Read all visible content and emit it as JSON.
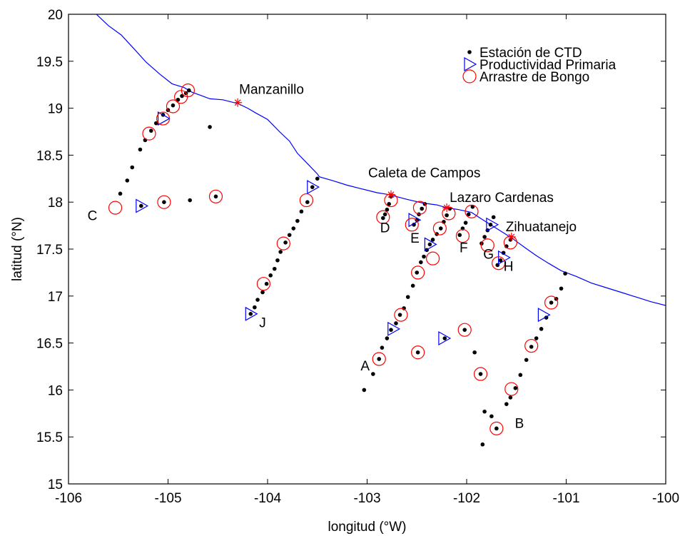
{
  "chart_data": {
    "type": "scatter",
    "title": "",
    "xlabel": "longitud (°W)",
    "ylabel": "latitud (°N)",
    "xlim": [
      -106,
      -100
    ],
    "ylim": [
      15,
      20
    ],
    "xticks": [
      -106,
      -105,
      -104,
      -103,
      -102,
      -101,
      -100
    ],
    "yticks": [
      15,
      15.5,
      16,
      16.5,
      17,
      17.5,
      18,
      18.5,
      19,
      19.5,
      20
    ],
    "legend_position": "top-right",
    "colors": {
      "ctd": "#000000",
      "productividad": "#0000ff",
      "bongo": "#ff0000",
      "coast": "#0000ff",
      "city": "#ff0000"
    },
    "series": [
      {
        "name": "Estación de CTD",
        "marker": "dot",
        "points": [
          [
            -105.48,
            18.09
          ],
          [
            -105.41,
            18.23
          ],
          [
            -105.36,
            18.37
          ],
          [
            -105.28,
            18.56
          ],
          [
            -105.23,
            18.66
          ],
          [
            -105.17,
            18.76
          ],
          [
            -105.12,
            18.84
          ],
          [
            -105.05,
            18.93
          ],
          [
            -105.0,
            18.98
          ],
          [
            -104.95,
            19.03
          ],
          [
            -104.9,
            19.09
          ],
          [
            -104.86,
            19.13
          ],
          [
            -104.82,
            19.16
          ],
          [
            -104.79,
            19.19
          ],
          [
            -105.27,
            17.96
          ],
          [
            -105.04,
            18.0
          ],
          [
            -104.78,
            18.02
          ],
          [
            -104.58,
            18.8
          ],
          [
            -104.52,
            18.06
          ],
          [
            -103.5,
            18.25
          ],
          [
            -103.55,
            18.16
          ],
          [
            -103.6,
            18.0
          ],
          [
            -103.66,
            17.9
          ],
          [
            -103.7,
            17.8
          ],
          [
            -103.74,
            17.72
          ],
          [
            -103.78,
            17.65
          ],
          [
            -103.82,
            17.57
          ],
          [
            -103.87,
            17.47
          ],
          [
            -103.9,
            17.38
          ],
          [
            -103.93,
            17.29
          ],
          [
            -103.97,
            17.22
          ],
          [
            -104.01,
            17.13
          ],
          [
            -104.05,
            17.04
          ],
          [
            -104.1,
            16.96
          ],
          [
            -104.13,
            16.88
          ],
          [
            -104.17,
            16.81
          ],
          [
            -102.76,
            18.06
          ],
          [
            -102.78,
            17.98
          ],
          [
            -102.8,
            17.92
          ],
          [
            -102.82,
            17.87
          ],
          [
            -102.84,
            17.83
          ],
          [
            -102.42,
            17.98
          ],
          [
            -102.45,
            17.93
          ],
          [
            -102.48,
            17.87
          ],
          [
            -102.5,
            17.81
          ],
          [
            -102.53,
            17.76
          ],
          [
            -102.17,
            17.93
          ],
          [
            -102.2,
            17.86
          ],
          [
            -102.23,
            17.79
          ],
          [
            -102.26,
            17.72
          ],
          [
            -102.3,
            17.66
          ],
          [
            -102.34,
            17.6
          ],
          [
            -102.37,
            17.55
          ],
          [
            -102.4,
            17.49
          ],
          [
            -102.43,
            17.42
          ],
          [
            -102.46,
            17.36
          ],
          [
            -102.5,
            17.25
          ],
          [
            -102.54,
            17.11
          ],
          [
            -102.59,
            16.99
          ],
          [
            -102.63,
            16.87
          ],
          [
            -102.67,
            16.8
          ],
          [
            -102.71,
            16.71
          ],
          [
            -102.76,
            16.64
          ],
          [
            -102.8,
            16.55
          ],
          [
            -102.85,
            16.45
          ],
          [
            -102.88,
            16.33
          ],
          [
            -102.94,
            16.17
          ],
          [
            -103.03,
            16.0
          ],
          [
            -101.94,
            17.95
          ],
          [
            -101.98,
            17.87
          ],
          [
            -102.01,
            17.78
          ],
          [
            -102.04,
            17.72
          ],
          [
            -102.07,
            17.65
          ],
          [
            -101.73,
            17.84
          ],
          [
            -101.76,
            17.76
          ],
          [
            -101.79,
            17.7
          ],
          [
            -101.82,
            17.63
          ],
          [
            -101.85,
            17.56
          ],
          [
            -101.56,
            17.6
          ],
          [
            -101.6,
            17.53
          ],
          [
            -101.63,
            17.46
          ],
          [
            -101.66,
            17.38
          ],
          [
            -101.69,
            17.33
          ],
          [
            -102.49,
            16.4
          ],
          [
            -102.22,
            16.55
          ],
          [
            -102.02,
            16.64
          ],
          [
            -101.92,
            16.4
          ],
          [
            -101.86,
            16.17
          ],
          [
            -101.82,
            15.77
          ],
          [
            -101.75,
            15.72
          ],
          [
            -101.7,
            15.59
          ],
          [
            -101.84,
            15.42
          ],
          [
            -101.01,
            17.24
          ],
          [
            -101.05,
            17.08
          ],
          [
            -101.1,
            16.97
          ],
          [
            -101.15,
            16.93
          ],
          [
            -101.2,
            16.77
          ],
          [
            -101.25,
            16.65
          ],
          [
            -101.3,
            16.55
          ],
          [
            -101.35,
            16.46
          ],
          [
            -101.4,
            16.32
          ],
          [
            -101.46,
            16.16
          ],
          [
            -101.51,
            16.02
          ],
          [
            -101.56,
            15.92
          ],
          [
            -101.6,
            15.85
          ]
        ]
      },
      {
        "name": "Productividad Primaria",
        "marker": "triangle-right",
        "points": [
          [
            -105.27,
            17.96
          ],
          [
            -105.05,
            18.89
          ],
          [
            -103.55,
            18.16
          ],
          [
            -104.17,
            16.81
          ],
          [
            -102.53,
            17.81
          ],
          [
            -102.37,
            17.55
          ],
          [
            -101.75,
            17.76
          ],
          [
            -101.63,
            17.41
          ],
          [
            -102.74,
            16.65
          ],
          [
            -102.23,
            16.55
          ],
          [
            -101.23,
            16.8
          ]
        ]
      },
      {
        "name": "Arrastre de Bongo",
        "marker": "circle",
        "points": [
          [
            -105.53,
            17.94
          ],
          [
            -105.04,
            18.0
          ],
          [
            -104.52,
            18.06
          ],
          [
            -105.19,
            18.73
          ],
          [
            -105.05,
            18.89
          ],
          [
            -104.95,
            19.02
          ],
          [
            -104.87,
            19.12
          ],
          [
            -104.8,
            19.19
          ],
          [
            -103.61,
            18.02
          ],
          [
            -103.84,
            17.56
          ],
          [
            -104.04,
            17.13
          ],
          [
            -102.76,
            18.02
          ],
          [
            -102.84,
            17.84
          ],
          [
            -102.55,
            17.76
          ],
          [
            -102.47,
            17.94
          ],
          [
            -102.18,
            17.88
          ],
          [
            -102.27,
            17.72
          ],
          [
            -102.04,
            17.64
          ],
          [
            -101.95,
            17.9
          ],
          [
            -101.79,
            17.54
          ],
          [
            -101.68,
            17.35
          ],
          [
            -101.56,
            17.57
          ],
          [
            -102.34,
            17.4
          ],
          [
            -102.49,
            17.25
          ],
          [
            -102.66,
            16.8
          ],
          [
            -102.88,
            16.33
          ],
          [
            -102.49,
            16.4
          ],
          [
            -102.02,
            16.64
          ],
          [
            -101.86,
            16.17
          ],
          [
            -101.55,
            16.01
          ],
          [
            -101.7,
            15.59
          ],
          [
            -101.35,
            16.47
          ],
          [
            -101.15,
            16.93
          ]
        ]
      }
    ],
    "cities": [
      {
        "name": "Manzanillo",
        "lon": -104.3,
        "lat": 19.06
      },
      {
        "name": "Caleta de Campos",
        "lon": -102.76,
        "lat": 18.08
      },
      {
        "name": "Lazaro Cardenas",
        "lon": -102.2,
        "lat": 17.94
      },
      {
        "name": "Zihuatanejo",
        "lon": -101.55,
        "lat": 17.63
      }
    ],
    "transect_labels": [
      {
        "label": "C",
        "lon": -105.76,
        "lat": 17.86
      },
      {
        "label": "J",
        "lon": -104.05,
        "lat": 16.72
      },
      {
        "label": "D",
        "lon": -102.82,
        "lat": 17.73
      },
      {
        "label": "E",
        "lon": -102.52,
        "lat": 17.62
      },
      {
        "label": "F",
        "lon": -102.03,
        "lat": 17.52
      },
      {
        "label": "G",
        "lon": -101.78,
        "lat": 17.45
      },
      {
        "label": "H",
        "lon": -101.58,
        "lat": 17.32
      },
      {
        "label": "A",
        "lon": -103.02,
        "lat": 16.26
      },
      {
        "label": "B",
        "lon": -101.47,
        "lat": 15.65
      }
    ],
    "coastline": [
      [
        -105.72,
        20.0
      ],
      [
        -105.6,
        19.88
      ],
      [
        -105.47,
        19.78
      ],
      [
        -105.34,
        19.63
      ],
      [
        -105.22,
        19.49
      ],
      [
        -105.08,
        19.36
      ],
      [
        -104.96,
        19.26
      ],
      [
        -104.84,
        19.22
      ],
      [
        -104.76,
        19.17
      ],
      [
        -104.68,
        19.14
      ],
      [
        -104.58,
        19.1
      ],
      [
        -104.45,
        19.09
      ],
      [
        -104.34,
        19.06
      ],
      [
        -104.3,
        19.05
      ],
      [
        -104.2,
        19.0
      ],
      [
        -104.12,
        18.95
      ],
      [
        -104.0,
        18.88
      ],
      [
        -103.88,
        18.75
      ],
      [
        -103.78,
        18.65
      ],
      [
        -103.7,
        18.52
      ],
      [
        -103.6,
        18.41
      ],
      [
        -103.5,
        18.3
      ],
      [
        -103.48,
        18.27
      ],
      [
        -103.35,
        18.23
      ],
      [
        -103.2,
        18.18
      ],
      [
        -103.05,
        18.14
      ],
      [
        -102.9,
        18.1
      ],
      [
        -102.78,
        18.08
      ],
      [
        -102.6,
        18.03
      ],
      [
        -102.44,
        17.99
      ],
      [
        -102.3,
        17.97
      ],
      [
        -102.2,
        17.94
      ],
      [
        -102.08,
        17.92
      ],
      [
        -101.95,
        17.89
      ],
      [
        -101.85,
        17.82
      ],
      [
        -101.7,
        17.72
      ],
      [
        -101.55,
        17.62
      ],
      [
        -101.42,
        17.52
      ],
      [
        -101.3,
        17.43
      ],
      [
        -101.18,
        17.35
      ],
      [
        -101.05,
        17.27
      ],
      [
        -100.9,
        17.21
      ],
      [
        -100.75,
        17.14
      ],
      [
        -100.6,
        17.09
      ],
      [
        -100.45,
        17.04
      ],
      [
        -100.3,
        16.99
      ],
      [
        -100.15,
        16.94
      ],
      [
        -100.0,
        16.9
      ]
    ]
  }
}
